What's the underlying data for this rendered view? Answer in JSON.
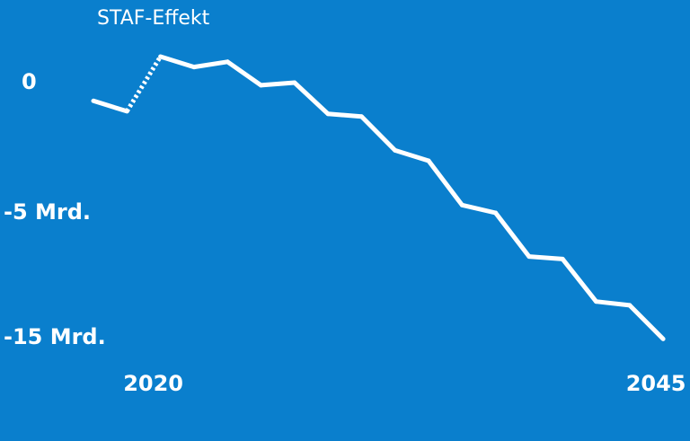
{
  "chart_data": {
    "type": "line",
    "annotation": "STAF-Effekt",
    "categories": [
      null,
      null,
      "2020",
      null,
      null,
      null,
      null,
      null,
      null,
      null,
      null,
      null,
      null,
      null,
      null,
      null,
      null,
      "2045"
    ],
    "series": [
      {
        "color": "#ffffff",
        "values": [
          -0.7,
          -1.1,
          1.0,
          0.6,
          0.8,
          -0.1,
          0.0,
          -1.2,
          -1.3,
          -2.6,
          -3.0,
          -4.7,
          -5.0,
          -8.5,
          -8.7,
          -12.1,
          -12.4,
          -15.1
        ]
      }
    ],
    "ylim": [
      -16,
      3
    ],
    "yticks": [
      {
        "value": 0,
        "label": "0"
      },
      {
        "value": -5,
        "label": "-5 Mrd."
      },
      {
        "value": -15,
        "label": "-15 Mrd."
      }
    ]
  }
}
